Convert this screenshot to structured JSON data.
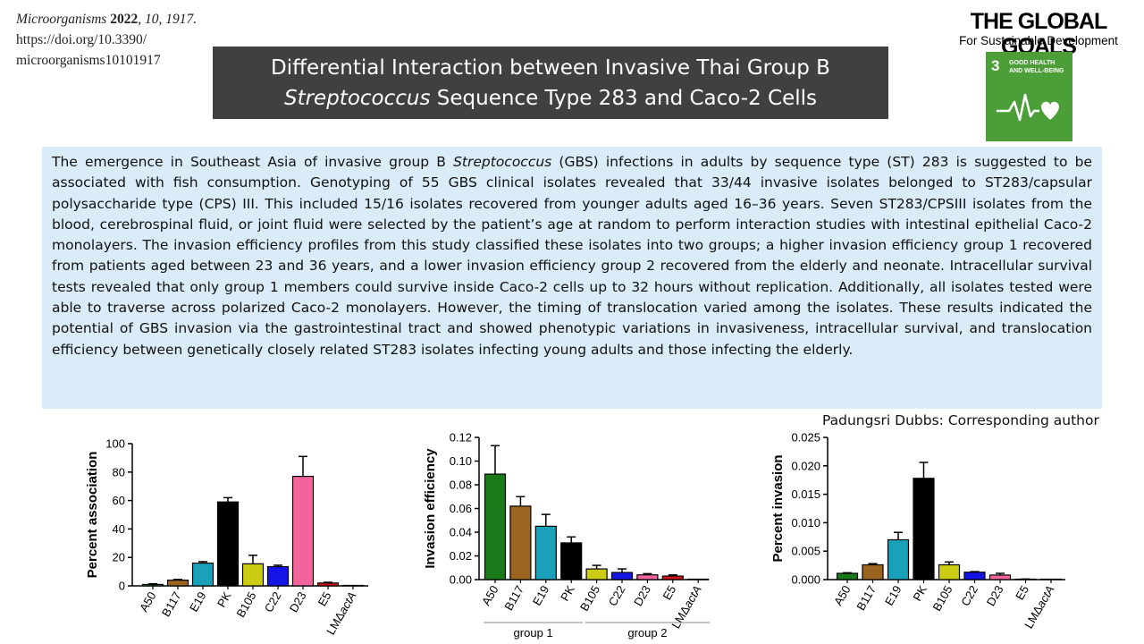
{
  "citation": {
    "journal": "Microorganisms",
    "year": "2022",
    "volume_page": ", 10, 1917.",
    "doi_line1": "https://doi.org/10.3390/",
    "doi_line2": "microorganisms10101917"
  },
  "title": {
    "line1": "Differential Interaction between Invasive Thai Group B",
    "line2_italic": "Streptococcus",
    "line2_rest": " Sequence Type 283 and Caco-2 Cells"
  },
  "logo": {
    "title": "THE GLOBAL GOALS",
    "subtitle": "For Sustainable Development",
    "goal_number": "3",
    "goal_label": "GOOD HEALTH AND WELL-BEING",
    "tile_color": "#4c9f38"
  },
  "abstract": {
    "part1": "The emergence in Southeast Asia of invasive group B ",
    "italic": "Streptococcus",
    "part2": " (GBS) infections in adults by sequence type (ST) 283 is suggested to be associated with fish consumption. Genotyping of 55 GBS clinical isolates revealed that 33/44 invasive isolates belonged to ST283/capsular polysaccharide type (CPS) III. This included 15/16 isolates recovered from younger adults aged 16–36 years. Seven ST283/CPSIII isolates from the blood, cerebrospinal fluid, or joint fluid were selected by the patient’s age at random to perform interaction studies with intestinal epithelial Caco-2 monolayers. The invasion efficiency profiles from this study classified these isolates into two groups; a higher invasion efficiency group 1 recovered from patients aged between 23 and 36 years, and a lower invasion efficiency group 2 recovered from the elderly and neonate. Intracellular survival tests revealed that only group 1 members could survive inside Caco-2 cells up to 32 hours without replication. Additionally, all isolates tested were able to traverse across polarized Caco-2 monolayers. However, the timing of translocation varied among the isolates. These results indicated the potential of GBS invasion via the gastrointestinal tract and showed phenotypic variations in invasiveness, intracellular survival, and translocation efficiency between genetically closely related ST283 isolates infecting young adults and those infecting the elderly.",
    "background": "#d9ecf8"
  },
  "author_note": "Padungsri Dubbs: Corresponding author",
  "chart_data": [
    {
      "type": "bar",
      "categories": [
        "A50",
        "B117",
        "E19",
        "PK",
        "B105",
        "C22",
        "D23",
        "E5",
        "LMΔactA"
      ],
      "values": [
        1,
        4,
        16,
        59,
        15.5,
        13.5,
        77,
        2,
        0
      ],
      "errors": [
        0.5,
        0.5,
        1,
        3,
        6,
        1,
        14,
        0.5,
        0
      ],
      "colors": [
        "#1a7a1a",
        "#9c6421",
        "#1aa0b8",
        "#000000",
        "#cccc14",
        "#1414e6",
        "#f2649c",
        "#d41414",
        "#000000"
      ],
      "ylabel": "Percent association",
      "ylim": [
        0,
        100
      ],
      "yticks": [
        "0",
        "20",
        "40",
        "60",
        "80",
        "100"
      ]
    },
    {
      "type": "bar",
      "categories": [
        "A50",
        "B117",
        "E19",
        "PK",
        "B105",
        "C22",
        "D23",
        "E5",
        "LMΔactA"
      ],
      "values": [
        0.089,
        0.062,
        0.045,
        0.031,
        0.009,
        0.006,
        0.004,
        0.003,
        0
      ],
      "errors": [
        0.024,
        0.008,
        0.01,
        0.005,
        0.003,
        0.003,
        0.001,
        0.001,
        0
      ],
      "colors": [
        "#1a7a1a",
        "#9c6421",
        "#1aa0b8",
        "#000000",
        "#cccc14",
        "#1414e6",
        "#f2649c",
        "#d41414",
        "#000000"
      ],
      "ylabel": "Invasion efficiency",
      "ylim": [
        0,
        0.12
      ],
      "yticks": [
        "0.00",
        "0.02",
        "0.04",
        "0.06",
        "0.08",
        "0.10",
        "0.12"
      ],
      "groups": [
        {
          "label": "group 1",
          "from": 0,
          "to": 3
        },
        {
          "label": "group 2",
          "from": 4,
          "to": 8
        }
      ]
    },
    {
      "type": "bar",
      "categories": [
        "A50",
        "B117",
        "E19",
        "PK",
        "B105",
        "C22",
        "D23",
        "E5",
        "LMΔactA"
      ],
      "values": [
        0.0011,
        0.0026,
        0.007,
        0.0178,
        0.0026,
        0.0013,
        0.0008,
        8e-05,
        3e-05
      ],
      "errors": [
        0.0001,
        0.0002,
        0.0013,
        0.0028,
        0.0005,
        0.0001,
        0.0003,
        2e-05,
        1e-05
      ],
      "colors": [
        "#1a7a1a",
        "#9c6421",
        "#1aa0b8",
        "#000000",
        "#cccc14",
        "#1414e6",
        "#f2649c",
        "#d41414",
        "#000000"
      ],
      "ylabel": "Percent invasion",
      "ylim": [
        0,
        0.025
      ],
      "yticks": [
        "0.000",
        "0.005",
        "0.010",
        "0.015",
        "0.020",
        "0.025"
      ]
    }
  ]
}
